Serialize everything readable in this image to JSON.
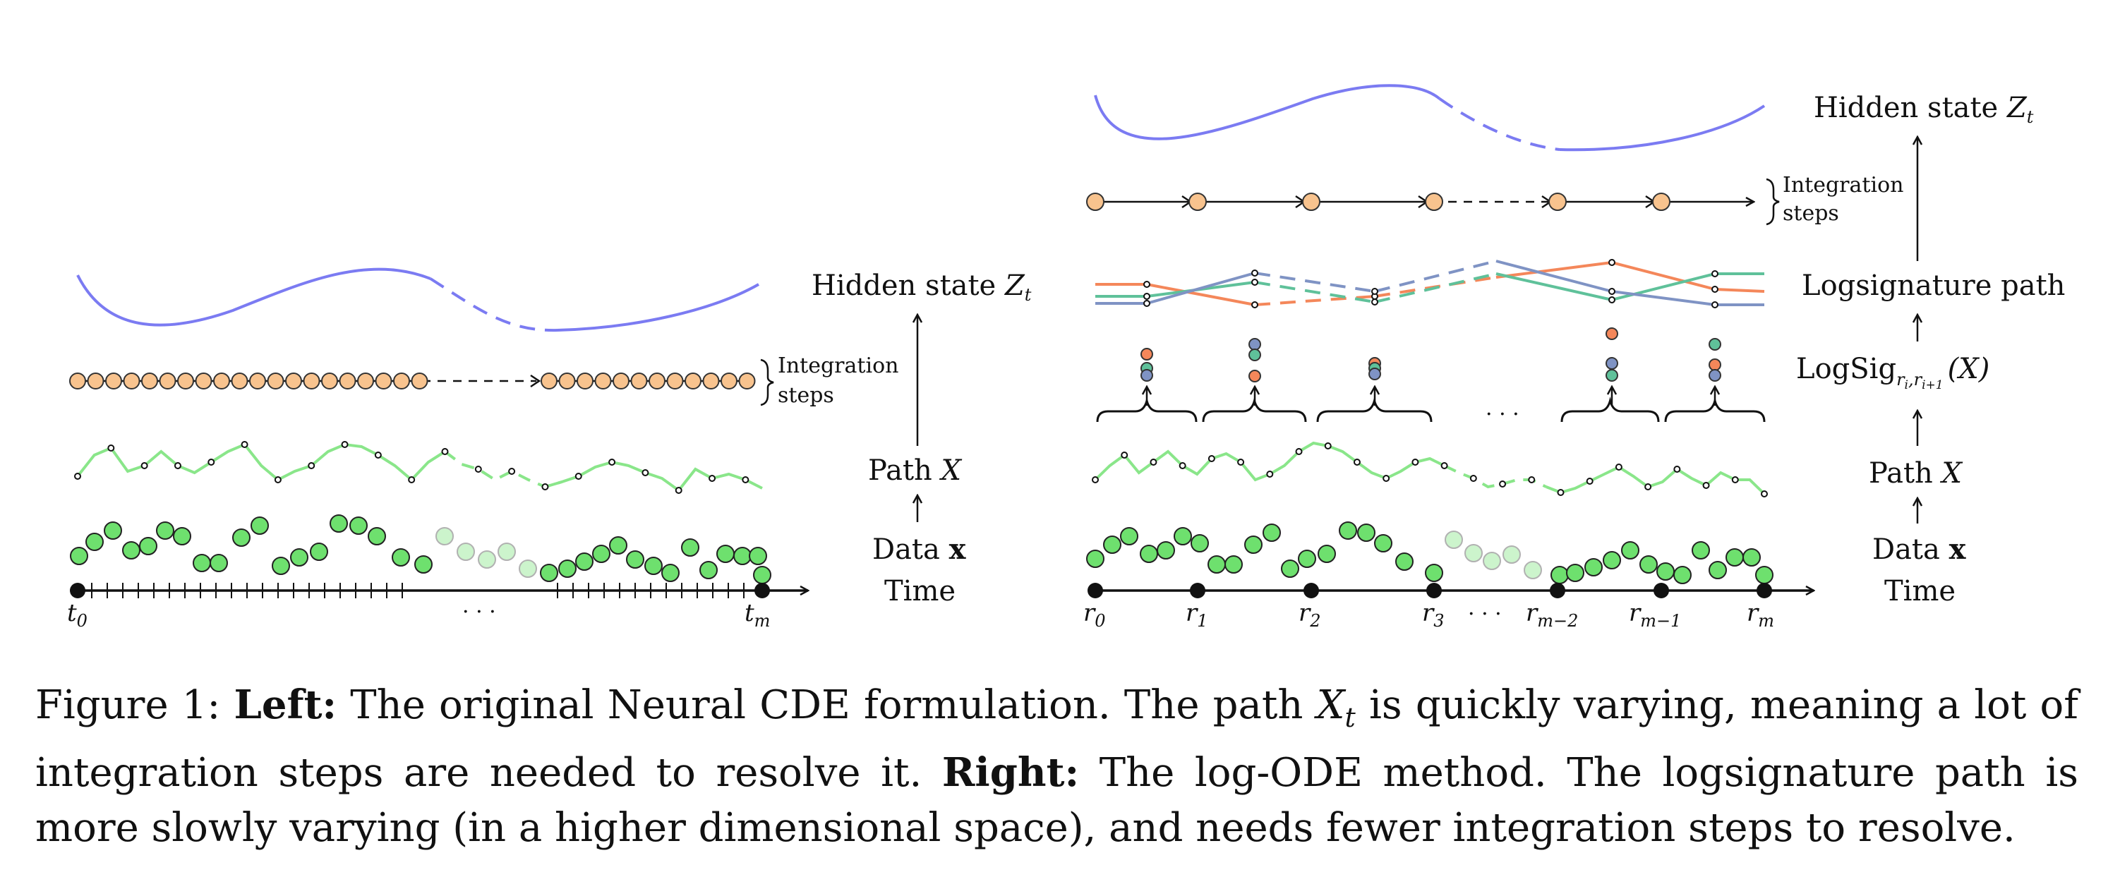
{
  "left_panel": {
    "labels": {
      "hidden_state": "Hidden state",
      "hidden_state_var": "Z",
      "hidden_state_sub": "t",
      "integration_steps_line1": "Integration",
      "integration_steps_line2": "steps",
      "path": "Path",
      "path_var": "X",
      "data": "Data",
      "data_var": "x",
      "time": "Time"
    },
    "axis": {
      "start_label": "t",
      "start_sub": "0",
      "end_label": "t",
      "end_sub": "m",
      "ellipsis": "· · ·"
    }
  },
  "right_panel": {
    "labels": {
      "hidden_state": "Hidden state",
      "hidden_state_var": "Z",
      "hidden_state_sub": "t",
      "integration_steps_line1": "Integration",
      "integration_steps_line2": "steps",
      "logsignature_path": "Logsignature path",
      "logsig": "LogSig",
      "logsig_sub": "r",
      "logsig_sub_i": "i",
      "logsig_sub_comma": ",",
      "logsig_sub_i1": "i+1",
      "logsig_arg": "(X)",
      "path": "Path",
      "path_var": "X",
      "data": "Data",
      "data_var": "x",
      "time": "Time",
      "brace_ellipsis": "· · ·"
    },
    "axis": {
      "ticks": [
        {
          "label": "r",
          "sub": "0"
        },
        {
          "label": "r",
          "sub": "1"
        },
        {
          "label": "r",
          "sub": "2"
        },
        {
          "label": "r",
          "sub": "3"
        },
        {
          "label": "r",
          "sub": "m−2"
        },
        {
          "label": "r",
          "sub": "m−1"
        },
        {
          "label": "r",
          "sub": "m"
        }
      ],
      "ellipsis": "· · ·"
    }
  },
  "colors": {
    "hidden": "#7b7bf2",
    "step": "#f8c38e",
    "path": "#8ae68a",
    "data": "#6ee06e",
    "orange": "#f4875a",
    "teal": "#5fc19a",
    "blue": "#7f93c4"
  },
  "caption": {
    "prefix": "Figure 1: ",
    "left_bold": "Left:",
    "left_text_a": " The original Neural CDE formulation. The path ",
    "left_var": "X",
    "left_sub": "t",
    "left_text_b": " is quickly varying, meaning a lot of integration steps are needed to resolve it. ",
    "right_bold": "Right:",
    "right_text": " The log-ODE method. The logsignature path is more slowly varying (in a higher dimensional space), and needs fewer integration steps to resolve."
  }
}
